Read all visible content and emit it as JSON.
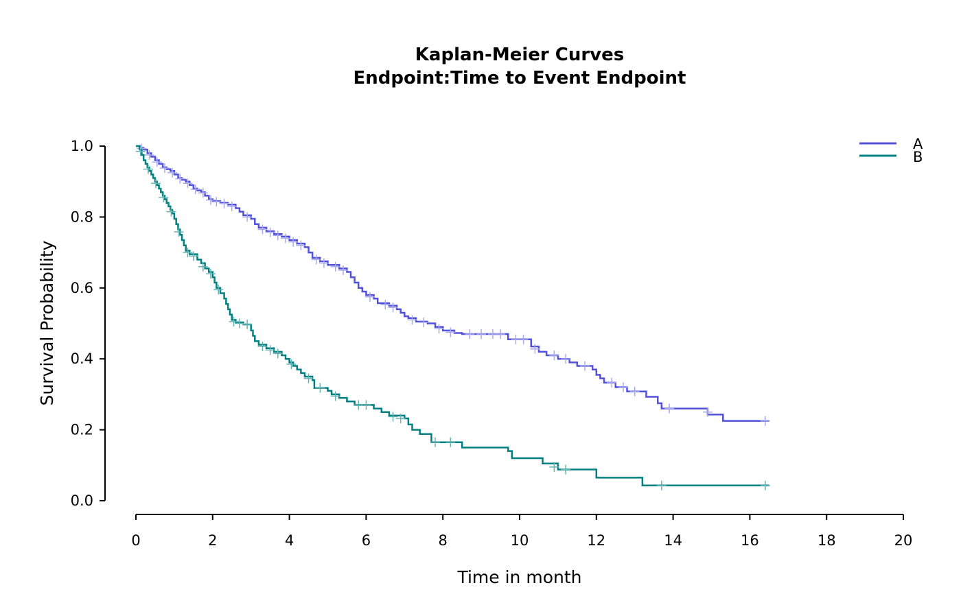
{
  "chart_data": {
    "type": "line",
    "subtype": "kaplan-meier-step",
    "title_line1": "Kaplan-Meier Curves",
    "title_line2": "Endpoint:Time to Event Endpoint",
    "xlabel": "Time in month",
    "ylabel": "Survival Probability",
    "xlim": [
      0,
      20
    ],
    "ylim": [
      0,
      1
    ],
    "xticks": [
      "0",
      "2",
      "4",
      "6",
      "8",
      "10",
      "12",
      "14",
      "16",
      "18",
      "20"
    ],
    "yticks": [
      "0.0",
      "0.2",
      "0.4",
      "0.6",
      "0.8",
      "1.0"
    ],
    "legend_position": "top-right",
    "series": [
      {
        "name": "A",
        "color": "#5151DB",
        "censor_color": "#A9A9EE",
        "points": [
          [
            0,
            1.0
          ],
          [
            0.1,
            0.995
          ],
          [
            0.2,
            0.99
          ],
          [
            0.3,
            0.98
          ],
          [
            0.4,
            0.97
          ],
          [
            0.5,
            0.96
          ],
          [
            0.6,
            0.95
          ],
          [
            0.7,
            0.94
          ],
          [
            0.8,
            0.935
          ],
          [
            0.9,
            0.93
          ],
          [
            1.0,
            0.92
          ],
          [
            1.1,
            0.91
          ],
          [
            1.2,
            0.905
          ],
          [
            1.3,
            0.9
          ],
          [
            1.4,
            0.89
          ],
          [
            1.5,
            0.88
          ],
          [
            1.6,
            0.875
          ],
          [
            1.7,
            0.87
          ],
          [
            1.8,
            0.86
          ],
          [
            1.9,
            0.85
          ],
          [
            2.0,
            0.845
          ],
          [
            2.2,
            0.84
          ],
          [
            2.4,
            0.835
          ],
          [
            2.6,
            0.825
          ],
          [
            2.7,
            0.815
          ],
          [
            2.8,
            0.805
          ],
          [
            3.0,
            0.795
          ],
          [
            3.1,
            0.78
          ],
          [
            3.2,
            0.77
          ],
          [
            3.4,
            0.76
          ],
          [
            3.6,
            0.752
          ],
          [
            3.8,
            0.745
          ],
          [
            4.0,
            0.735
          ],
          [
            4.2,
            0.725
          ],
          [
            4.4,
            0.715
          ],
          [
            4.5,
            0.7
          ],
          [
            4.6,
            0.685
          ],
          [
            4.8,
            0.675
          ],
          [
            5.0,
            0.665
          ],
          [
            5.3,
            0.655
          ],
          [
            5.5,
            0.645
          ],
          [
            5.6,
            0.63
          ],
          [
            5.7,
            0.615
          ],
          [
            5.8,
            0.6
          ],
          [
            5.9,
            0.59
          ],
          [
            6.0,
            0.58
          ],
          [
            6.2,
            0.57
          ],
          [
            6.3,
            0.557
          ],
          [
            6.6,
            0.55
          ],
          [
            6.8,
            0.54
          ],
          [
            6.9,
            0.53
          ],
          [
            7.0,
            0.52
          ],
          [
            7.1,
            0.515
          ],
          [
            7.3,
            0.505
          ],
          [
            7.6,
            0.5
          ],
          [
            7.8,
            0.49
          ],
          [
            8.0,
            0.48
          ],
          [
            8.3,
            0.473
          ],
          [
            8.5,
            0.47
          ],
          [
            9.7,
            0.455
          ],
          [
            10.3,
            0.435
          ],
          [
            10.5,
            0.42
          ],
          [
            10.7,
            0.41
          ],
          [
            11.0,
            0.4
          ],
          [
            11.3,
            0.39
          ],
          [
            11.5,
            0.38
          ],
          [
            11.9,
            0.37
          ],
          [
            12.0,
            0.355
          ],
          [
            12.1,
            0.345
          ],
          [
            12.2,
            0.333
          ],
          [
            12.5,
            0.32
          ],
          [
            12.8,
            0.308
          ],
          [
            13.3,
            0.293
          ],
          [
            13.6,
            0.275
          ],
          [
            13.7,
            0.26
          ],
          [
            14.9,
            0.243
          ],
          [
            15.3,
            0.225
          ],
          [
            16.5,
            0.225
          ]
        ],
        "censored": [
          [
            0.15,
            0.993
          ],
          [
            0.35,
            0.975
          ],
          [
            0.55,
            0.955
          ],
          [
            0.75,
            0.938
          ],
          [
            0.95,
            0.925
          ],
          [
            1.15,
            0.908
          ],
          [
            1.35,
            0.895
          ],
          [
            1.55,
            0.878
          ],
          [
            1.75,
            0.868
          ],
          [
            1.95,
            0.848
          ],
          [
            2.1,
            0.843
          ],
          [
            2.3,
            0.838
          ],
          [
            2.5,
            0.83
          ],
          [
            2.9,
            0.8
          ],
          [
            3.3,
            0.765
          ],
          [
            3.5,
            0.757
          ],
          [
            3.7,
            0.748
          ],
          [
            3.9,
            0.74
          ],
          [
            4.1,
            0.73
          ],
          [
            4.3,
            0.72
          ],
          [
            4.7,
            0.68
          ],
          [
            4.9,
            0.67
          ],
          [
            5.2,
            0.66
          ],
          [
            5.4,
            0.65
          ],
          [
            6.1,
            0.575
          ],
          [
            6.5,
            0.553
          ],
          [
            6.7,
            0.545
          ],
          [
            7.2,
            0.51
          ],
          [
            7.5,
            0.503
          ],
          [
            7.9,
            0.485
          ],
          [
            8.2,
            0.475
          ],
          [
            8.7,
            0.47
          ],
          [
            9.0,
            0.47
          ],
          [
            9.3,
            0.47
          ],
          [
            9.5,
            0.47
          ],
          [
            9.9,
            0.455
          ],
          [
            10.1,
            0.455
          ],
          [
            10.4,
            0.428
          ],
          [
            10.9,
            0.41
          ],
          [
            11.2,
            0.4
          ],
          [
            11.7,
            0.38
          ],
          [
            12.4,
            0.333
          ],
          [
            12.7,
            0.32
          ],
          [
            13.0,
            0.308
          ],
          [
            13.9,
            0.26
          ],
          [
            14.9,
            0.25
          ],
          [
            16.4,
            0.225
          ]
        ]
      },
      {
        "name": "B",
        "color": "#008080",
        "censor_color": "#66B3B3",
        "points": [
          [
            0,
            1.0
          ],
          [
            0.1,
            0.99
          ],
          [
            0.15,
            0.975
          ],
          [
            0.2,
            0.96
          ],
          [
            0.25,
            0.95
          ],
          [
            0.3,
            0.94
          ],
          [
            0.35,
            0.93
          ],
          [
            0.4,
            0.92
          ],
          [
            0.45,
            0.91
          ],
          [
            0.5,
            0.9
          ],
          [
            0.55,
            0.89
          ],
          [
            0.6,
            0.88
          ],
          [
            0.65,
            0.87
          ],
          [
            0.7,
            0.86
          ],
          [
            0.75,
            0.85
          ],
          [
            0.8,
            0.84
          ],
          [
            0.85,
            0.83
          ],
          [
            0.9,
            0.82
          ],
          [
            0.95,
            0.81
          ],
          [
            1.0,
            0.795
          ],
          [
            1.05,
            0.78
          ],
          [
            1.1,
            0.765
          ],
          [
            1.15,
            0.75
          ],
          [
            1.2,
            0.735
          ],
          [
            1.25,
            0.72
          ],
          [
            1.3,
            0.705
          ],
          [
            1.4,
            0.695
          ],
          [
            1.6,
            0.68
          ],
          [
            1.7,
            0.67
          ],
          [
            1.8,
            0.655
          ],
          [
            1.9,
            0.645
          ],
          [
            2.0,
            0.63
          ],
          [
            2.05,
            0.615
          ],
          [
            2.1,
            0.6
          ],
          [
            2.2,
            0.585
          ],
          [
            2.3,
            0.57
          ],
          [
            2.35,
            0.555
          ],
          [
            2.4,
            0.54
          ],
          [
            2.45,
            0.525
          ],
          [
            2.5,
            0.51
          ],
          [
            2.6,
            0.503
          ],
          [
            2.8,
            0.497
          ],
          [
            3.0,
            0.48
          ],
          [
            3.05,
            0.465
          ],
          [
            3.1,
            0.45
          ],
          [
            3.2,
            0.44
          ],
          [
            3.4,
            0.43
          ],
          [
            3.6,
            0.42
          ],
          [
            3.8,
            0.41
          ],
          [
            3.9,
            0.4
          ],
          [
            4.0,
            0.39
          ],
          [
            4.1,
            0.38
          ],
          [
            4.2,
            0.37
          ],
          [
            4.3,
            0.36
          ],
          [
            4.4,
            0.35
          ],
          [
            4.6,
            0.34
          ],
          [
            4.65,
            0.318
          ],
          [
            5.0,
            0.31
          ],
          [
            5.1,
            0.3
          ],
          [
            5.3,
            0.29
          ],
          [
            5.5,
            0.28
          ],
          [
            5.7,
            0.27
          ],
          [
            6.2,
            0.26
          ],
          [
            6.4,
            0.25
          ],
          [
            6.6,
            0.24
          ],
          [
            7.0,
            0.232
          ],
          [
            7.1,
            0.215
          ],
          [
            7.2,
            0.2
          ],
          [
            7.4,
            0.188
          ],
          [
            7.7,
            0.165
          ],
          [
            8.5,
            0.15
          ],
          [
            9.7,
            0.14
          ],
          [
            9.8,
            0.12
          ],
          [
            10.6,
            0.105
          ],
          [
            11.0,
            0.088
          ],
          [
            12.0,
            0.065
          ],
          [
            13.2,
            0.043
          ],
          [
            16.5,
            0.043
          ]
        ],
        "censored": [
          [
            0.12,
            0.985
          ],
          [
            0.32,
            0.935
          ],
          [
            0.52,
            0.895
          ],
          [
            0.72,
            0.855
          ],
          [
            0.92,
            0.815
          ],
          [
            1.12,
            0.758
          ],
          [
            1.35,
            0.7
          ],
          [
            1.5,
            0.69
          ],
          [
            1.75,
            0.66
          ],
          [
            1.95,
            0.64
          ],
          [
            2.15,
            0.595
          ],
          [
            2.55,
            0.505
          ],
          [
            2.7,
            0.5
          ],
          [
            2.9,
            0.497
          ],
          [
            3.3,
            0.435
          ],
          [
            3.5,
            0.425
          ],
          [
            3.7,
            0.415
          ],
          [
            4.05,
            0.385
          ],
          [
            4.5,
            0.345
          ],
          [
            4.8,
            0.318
          ],
          [
            5.2,
            0.295
          ],
          [
            5.8,
            0.27
          ],
          [
            6.0,
            0.27
          ],
          [
            6.7,
            0.237
          ],
          [
            6.9,
            0.232
          ],
          [
            7.8,
            0.165
          ],
          [
            8.2,
            0.165
          ],
          [
            10.9,
            0.095
          ],
          [
            11.2,
            0.088
          ],
          [
            13.7,
            0.043
          ],
          [
            16.4,
            0.043
          ]
        ]
      }
    ]
  }
}
